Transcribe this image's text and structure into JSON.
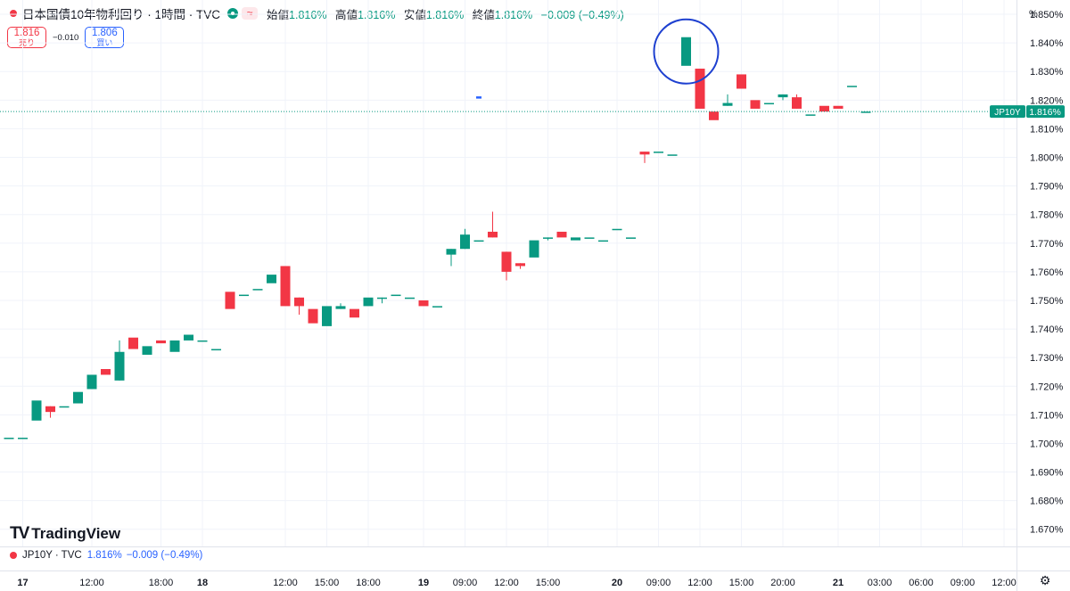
{
  "header": {
    "title": "日本国債10年物利回り · 1時間 · TVC",
    "ohlc": [
      {
        "label": "始値",
        "value": "1.816%"
      },
      {
        "label": "高値",
        "value": "1.816%"
      },
      {
        "label": "安値",
        "value": "1.816%"
      },
      {
        "label": "終値",
        "value": "1.816%"
      }
    ],
    "change": "−0.009 (−0.49%)",
    "wave_symbol": "≈"
  },
  "trade": {
    "sell_price": "1.816",
    "sell_label": "売り",
    "spread": "−0.010",
    "buy_price": "1.806",
    "buy_label": "買い"
  },
  "legend": {
    "symbol": "JP10Y · TVC",
    "value": "1.816%",
    "change": "−0.009 (−0.49%)"
  },
  "brand": {
    "name": "TradingView",
    "mark": "TV"
  },
  "price_tag": {
    "label": "JP10Y",
    "value": "1.816%"
  },
  "colors": {
    "up": "#089981",
    "down": "#f23645",
    "accent": "#2962ff",
    "circle": "#1e40d0"
  },
  "chart_data": {
    "type": "candlestick",
    "unit": "%",
    "ylim": [
      1.664,
      1.855
    ],
    "y_ticks": [
      1.67,
      1.68,
      1.69,
      1.7,
      1.71,
      1.72,
      1.73,
      1.74,
      1.75,
      1.76,
      1.77,
      1.78,
      1.79,
      1.8,
      1.81,
      1.82,
      1.83,
      1.84,
      1.85
    ],
    "y_tick_labels": [
      "1.670%",
      "1.680%",
      "1.690%",
      "1.700%",
      "1.710%",
      "1.720%",
      "1.730%",
      "1.740%",
      "1.750%",
      "1.760%",
      "1.770%",
      "1.780%",
      "1.790%",
      "1.800%",
      "1.810%",
      "1.820%",
      "1.830%",
      "1.840%",
      "1.850%"
    ],
    "x_ticks": [
      {
        "i": 1,
        "label": "17",
        "bold": true
      },
      {
        "i": 6,
        "label": "12:00"
      },
      {
        "i": 11,
        "label": "18:00"
      },
      {
        "i": 14,
        "label": "18",
        "bold": true
      },
      {
        "i": 20,
        "label": "12:00"
      },
      {
        "i": 23,
        "label": "15:00"
      },
      {
        "i": 26,
        "label": "18:00"
      },
      {
        "i": 30,
        "label": "19",
        "bold": true
      },
      {
        "i": 33,
        "label": "09:00"
      },
      {
        "i": 36,
        "label": "12:00"
      },
      {
        "i": 39,
        "label": "15:00"
      },
      {
        "i": 44,
        "label": "20",
        "bold": true
      },
      {
        "i": 47,
        "label": "09:00"
      },
      {
        "i": 50,
        "label": "12:00"
      },
      {
        "i": 53,
        "label": "15:00"
      },
      {
        "i": 56,
        "label": "20:00"
      },
      {
        "i": 60,
        "label": "21",
        "bold": true
      },
      {
        "i": 63,
        "label": "03:00"
      },
      {
        "i": 66,
        "label": "06:00"
      },
      {
        "i": 69,
        "label": "09:00"
      },
      {
        "i": 72,
        "label": "12:00"
      }
    ],
    "current_price": 1.816,
    "candles": [
      {
        "i": 0,
        "o": 1.702,
        "h": 1.702,
        "l": 1.702,
        "c": 1.702
      },
      {
        "i": 1,
        "o": 1.702,
        "h": 1.702,
        "l": 1.702,
        "c": 1.702
      },
      {
        "i": 2,
        "o": 1.708,
        "h": 1.715,
        "l": 1.708,
        "c": 1.715
      },
      {
        "i": 3,
        "o": 1.713,
        "h": 1.713,
        "l": 1.709,
        "c": 1.711
      },
      {
        "i": 4,
        "o": 1.713,
        "h": 1.713,
        "l": 1.713,
        "c": 1.713
      },
      {
        "i": 5,
        "o": 1.714,
        "h": 1.718,
        "l": 1.714,
        "c": 1.718
      },
      {
        "i": 6,
        "o": 1.719,
        "h": 1.724,
        "l": 1.719,
        "c": 1.724
      },
      {
        "i": 7,
        "o": 1.726,
        "h": 1.726,
        "l": 1.724,
        "c": 1.724
      },
      {
        "i": 8,
        "o": 1.722,
        "h": 1.736,
        "l": 1.722,
        "c": 1.732
      },
      {
        "i": 9,
        "o": 1.737,
        "h": 1.737,
        "l": 1.733,
        "c": 1.733
      },
      {
        "i": 10,
        "o": 1.731,
        "h": 1.734,
        "l": 1.731,
        "c": 1.734
      },
      {
        "i": 11,
        "o": 1.736,
        "h": 1.736,
        "l": 1.735,
        "c": 1.735
      },
      {
        "i": 12,
        "o": 1.732,
        "h": 1.736,
        "l": 1.732,
        "c": 1.736
      },
      {
        "i": 13,
        "o": 1.736,
        "h": 1.738,
        "l": 1.736,
        "c": 1.738
      },
      {
        "i": 14,
        "o": 1.736,
        "h": 1.736,
        "l": 1.736,
        "c": 1.736
      },
      {
        "i": 15,
        "o": 1.733,
        "h": 1.733,
        "l": 1.733,
        "c": 1.733
      },
      {
        "i": 16,
        "o": 1.753,
        "h": 1.753,
        "l": 1.747,
        "c": 1.747
      },
      {
        "i": 17,
        "o": 1.752,
        "h": 1.752,
        "l": 1.752,
        "c": 1.752
      },
      {
        "i": 18,
        "o": 1.754,
        "h": 1.754,
        "l": 1.754,
        "c": 1.754
      },
      {
        "i": 19,
        "o": 1.756,
        "h": 1.759,
        "l": 1.756,
        "c": 1.759
      },
      {
        "i": 20,
        "o": 1.762,
        "h": 1.762,
        "l": 1.748,
        "c": 1.748
      },
      {
        "i": 21,
        "o": 1.751,
        "h": 1.751,
        "l": 1.745,
        "c": 1.748
      },
      {
        "i": 22,
        "o": 1.747,
        "h": 1.747,
        "l": 1.742,
        "c": 1.742
      },
      {
        "i": 23,
        "o": 1.741,
        "h": 1.748,
        "l": 1.741,
        "c": 1.748
      },
      {
        "i": 24,
        "o": 1.747,
        "h": 1.749,
        "l": 1.747,
        "c": 1.748
      },
      {
        "i": 25,
        "o": 1.747,
        "h": 1.747,
        "l": 1.744,
        "c": 1.744
      },
      {
        "i": 26,
        "o": 1.748,
        "h": 1.751,
        "l": 1.748,
        "c": 1.751
      },
      {
        "i": 27,
        "o": 1.751,
        "h": 1.751,
        "l": 1.749,
        "c": 1.751
      },
      {
        "i": 28,
        "o": 1.752,
        "h": 1.752,
        "l": 1.752,
        "c": 1.752
      },
      {
        "i": 29,
        "o": 1.751,
        "h": 1.751,
        "l": 1.751,
        "c": 1.751
      },
      {
        "i": 30,
        "o": 1.75,
        "h": 1.75,
        "l": 1.748,
        "c": 1.748
      },
      {
        "i": 31,
        "o": 1.748,
        "h": 1.748,
        "l": 1.748,
        "c": 1.748
      },
      {
        "i": 32,
        "o": 1.766,
        "h": 1.768,
        "l": 1.762,
        "c": 1.768
      },
      {
        "i": 33,
        "o": 1.768,
        "h": 1.775,
        "l": 1.768,
        "c": 1.773
      },
      {
        "i": 34,
        "o": 1.771,
        "h": 1.771,
        "l": 1.771,
        "c": 1.771
      },
      {
        "i": 35,
        "o": 1.774,
        "h": 1.781,
        "l": 1.772,
        "c": 1.772
      },
      {
        "i": 36,
        "o": 1.767,
        "h": 1.767,
        "l": 1.757,
        "c": 1.76
      },
      {
        "i": 37,
        "o": 1.763,
        "h": 1.763,
        "l": 1.761,
        "c": 1.762
      },
      {
        "i": 38,
        "o": 1.765,
        "h": 1.771,
        "l": 1.765,
        "c": 1.771
      },
      {
        "i": 39,
        "o": 1.772,
        "h": 1.772,
        "l": 1.771,
        "c": 1.772
      },
      {
        "i": 40,
        "o": 1.774,
        "h": 1.774,
        "l": 1.772,
        "c": 1.772
      },
      {
        "i": 41,
        "o": 1.771,
        "h": 1.772,
        "l": 1.771,
        "c": 1.772
      },
      {
        "i": 42,
        "o": 1.772,
        "h": 1.772,
        "l": 1.772,
        "c": 1.772
      },
      {
        "i": 43,
        "o": 1.771,
        "h": 1.771,
        "l": 1.771,
        "c": 1.771
      },
      {
        "i": 44,
        "o": 1.775,
        "h": 1.775,
        "l": 1.775,
        "c": 1.775
      },
      {
        "i": 45,
        "o": 1.772,
        "h": 1.772,
        "l": 1.772,
        "c": 1.772
      },
      {
        "i": 46,
        "o": 1.802,
        "h": 1.802,
        "l": 1.798,
        "c": 1.801
      },
      {
        "i": 47,
        "o": 1.802,
        "h": 1.802,
        "l": 1.802,
        "c": 1.802
      },
      {
        "i": 48,
        "o": 1.801,
        "h": 1.801,
        "l": 1.801,
        "c": 1.801
      },
      {
        "i": 49,
        "o": 1.832,
        "h": 1.842,
        "l": 1.832,
        "c": 1.842
      },
      {
        "i": 50,
        "o": 1.831,
        "h": 1.831,
        "l": 1.817,
        "c": 1.817
      },
      {
        "i": 51,
        "o": 1.816,
        "h": 1.816,
        "l": 1.813,
        "c": 1.813
      },
      {
        "i": 52,
        "o": 1.818,
        "h": 1.822,
        "l": 1.818,
        "c": 1.819
      },
      {
        "i": 53,
        "o": 1.829,
        "h": 1.829,
        "l": 1.824,
        "c": 1.824
      },
      {
        "i": 54,
        "o": 1.82,
        "h": 1.82,
        "l": 1.817,
        "c": 1.817
      },
      {
        "i": 55,
        "o": 1.819,
        "h": 1.819,
        "l": 1.819,
        "c": 1.819
      },
      {
        "i": 56,
        "o": 1.821,
        "h": 1.822,
        "l": 1.82,
        "c": 1.822
      },
      {
        "i": 57,
        "o": 1.821,
        "h": 1.822,
        "l": 1.817,
        "c": 1.817
      },
      {
        "i": 58,
        "o": 1.815,
        "h": 1.815,
        "l": 1.815,
        "c": 1.815
      },
      {
        "i": 59,
        "o": 1.818,
        "h": 1.818,
        "l": 1.816,
        "c": 1.816
      },
      {
        "i": 60,
        "o": 1.818,
        "h": 1.818,
        "l": 1.817,
        "c": 1.817
      },
      {
        "i": 61,
        "o": 1.825,
        "h": 1.825,
        "l": 1.825,
        "c": 1.825
      },
      {
        "i": 62,
        "o": 1.816,
        "h": 1.816,
        "l": 1.816,
        "c": 1.816
      }
    ],
    "other_markers": [
      {
        "i": 34,
        "value": 1.821,
        "color": "blue"
      }
    ],
    "annotation": {
      "type": "circle",
      "i": 49,
      "value": 1.837
    }
  }
}
